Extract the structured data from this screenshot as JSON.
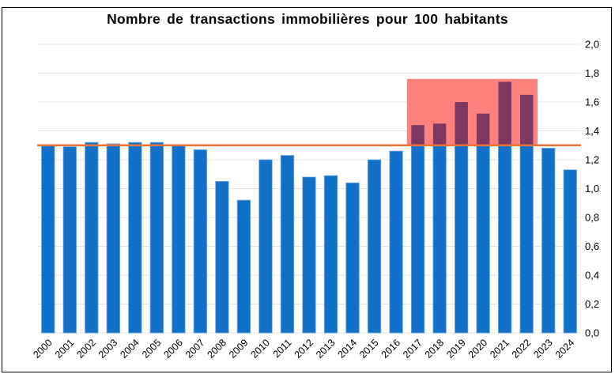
{
  "title": "Nombre de transactions immobilières pour 100 habitants",
  "chart_data": {
    "type": "bar",
    "title": "Nombre de transactions immobilières pour 100 habitants",
    "xlabel": "",
    "ylabel": "",
    "categories": [
      "2000",
      "2001",
      "2002",
      "2003",
      "2004",
      "2005",
      "2006",
      "2007",
      "2008",
      "2009",
      "2010",
      "2011",
      "2012",
      "2013",
      "2014",
      "2015",
      "2016",
      "2017",
      "2018",
      "2019",
      "2020",
      "2021",
      "2022",
      "2023",
      "2024"
    ],
    "values": [
      1.3,
      1.29,
      1.32,
      1.31,
      1.32,
      1.32,
      1.3,
      1.27,
      1.05,
      0.92,
      1.2,
      1.23,
      1.08,
      1.09,
      1.04,
      1.2,
      1.26,
      1.44,
      1.45,
      1.6,
      1.52,
      1.74,
      1.65,
      1.28,
      1.13
    ],
    "ylim": [
      0,
      2.0
    ],
    "ytick_step": 0.2,
    "ytick_labels": [
      "0,0",
      "0,2",
      "0,4",
      "0,6",
      "0,8",
      "1,0",
      "1,2",
      "1,4",
      "1,6",
      "1,8",
      "2,0"
    ],
    "yaxis_side": "right",
    "grid": true,
    "legend": "none",
    "reference_line": {
      "value": 1.3,
      "color": "#E8723A"
    },
    "highlight_zone": {
      "from_year": "2017",
      "to_year": "2022",
      "y_from": 1.3,
      "y_to": 1.76,
      "fill": "#FD827D"
    },
    "colors": {
      "bar": "#1170C8",
      "bar_edge": "#72A9DE",
      "bar_above_line": "#7E3963",
      "reference_line": "#E8723A",
      "highlight_fill": "#FD827D",
      "gridline": "#E4E4E4",
      "frame_border": "#000000",
      "text": "#000000"
    }
  }
}
